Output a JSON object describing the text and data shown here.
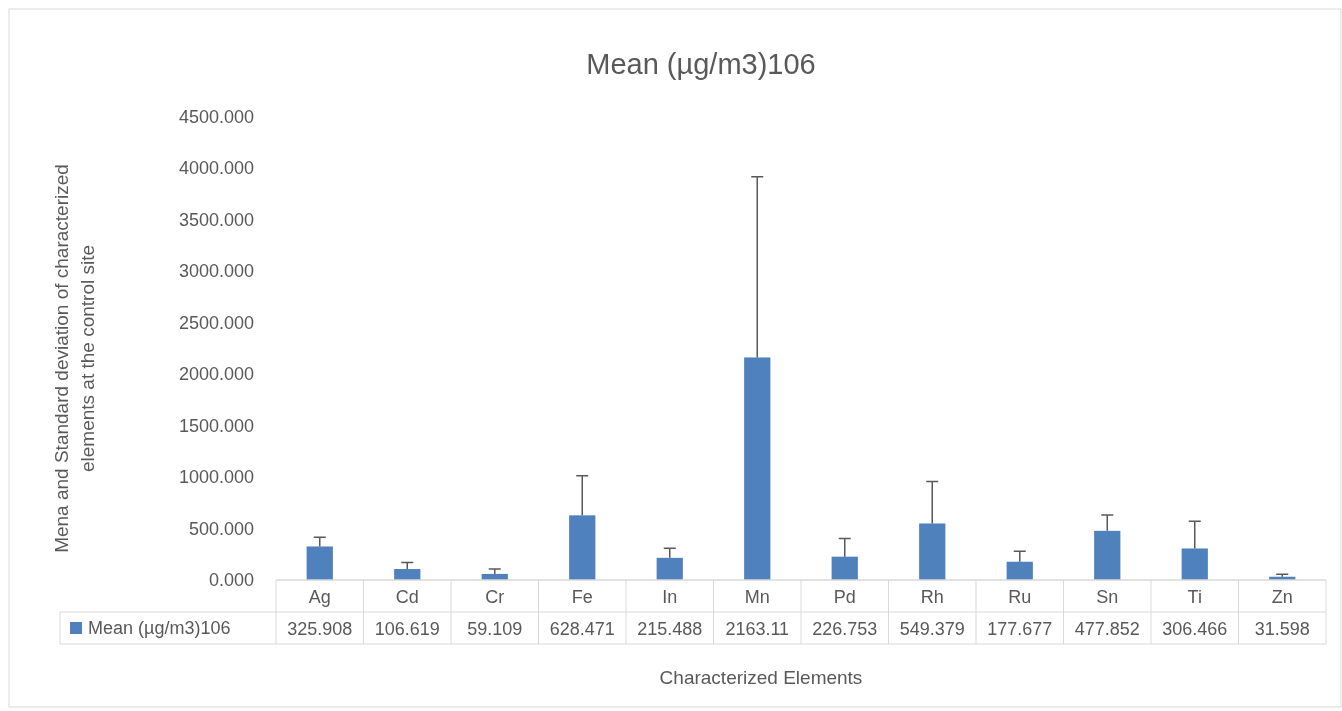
{
  "chart_data": {
    "type": "bar",
    "title": "Mean (µg/m3)106",
    "xlabel": "Characterized Elements",
    "ylabel": "Mena and Standard deviation of characterized elements at the control site",
    "categories": [
      "Ag",
      "Cd",
      "Cr",
      "Fe",
      "In",
      "Mn",
      "Pd",
      "Rh",
      "Ru",
      "Sn",
      "Ti",
      "Zn"
    ],
    "series": [
      {
        "name": "Mean (µg/m3)106",
        "color": "#4f81bd",
        "values": [
          325.908,
          106.619,
          59.109,
          628.471,
          215.488,
          2163.11,
          226.753,
          549.379,
          177.677,
          477.852,
          306.466,
          31.598
        ],
        "errors": [
          [
            325.908,
            415
          ],
          [
            106.619,
            170
          ],
          [
            59.109,
            106
          ],
          [
            628.471,
            1013
          ],
          [
            215.488,
            309
          ],
          [
            2163.11,
            3919
          ],
          [
            226.753,
            403
          ],
          [
            549.379,
            958
          ],
          [
            177.677,
            280
          ],
          [
            477.852,
            631
          ],
          [
            306.466,
            572
          ],
          [
            31.598,
            55
          ]
        ]
      }
    ],
    "ylim": [
      0,
      4500
    ],
    "yticks": [
      {
        "value": 0,
        "label": "0.000"
      },
      {
        "value": 500,
        "label": "500.000"
      },
      {
        "value": 1000,
        "label": "1000.000"
      },
      {
        "value": 1500,
        "label": "1500.000"
      },
      {
        "value": 2000,
        "label": "2000.000"
      },
      {
        "value": 2500,
        "label": "2500.000"
      },
      {
        "value": 3000,
        "label": "3000.000"
      },
      {
        "value": 3500,
        "label": "3500.000"
      },
      {
        "value": 4000,
        "label": "4000.000"
      },
      {
        "value": 4500,
        "label": "4500.000"
      }
    ],
    "grid": false,
    "legend": "bottom",
    "data_labels": true
  }
}
